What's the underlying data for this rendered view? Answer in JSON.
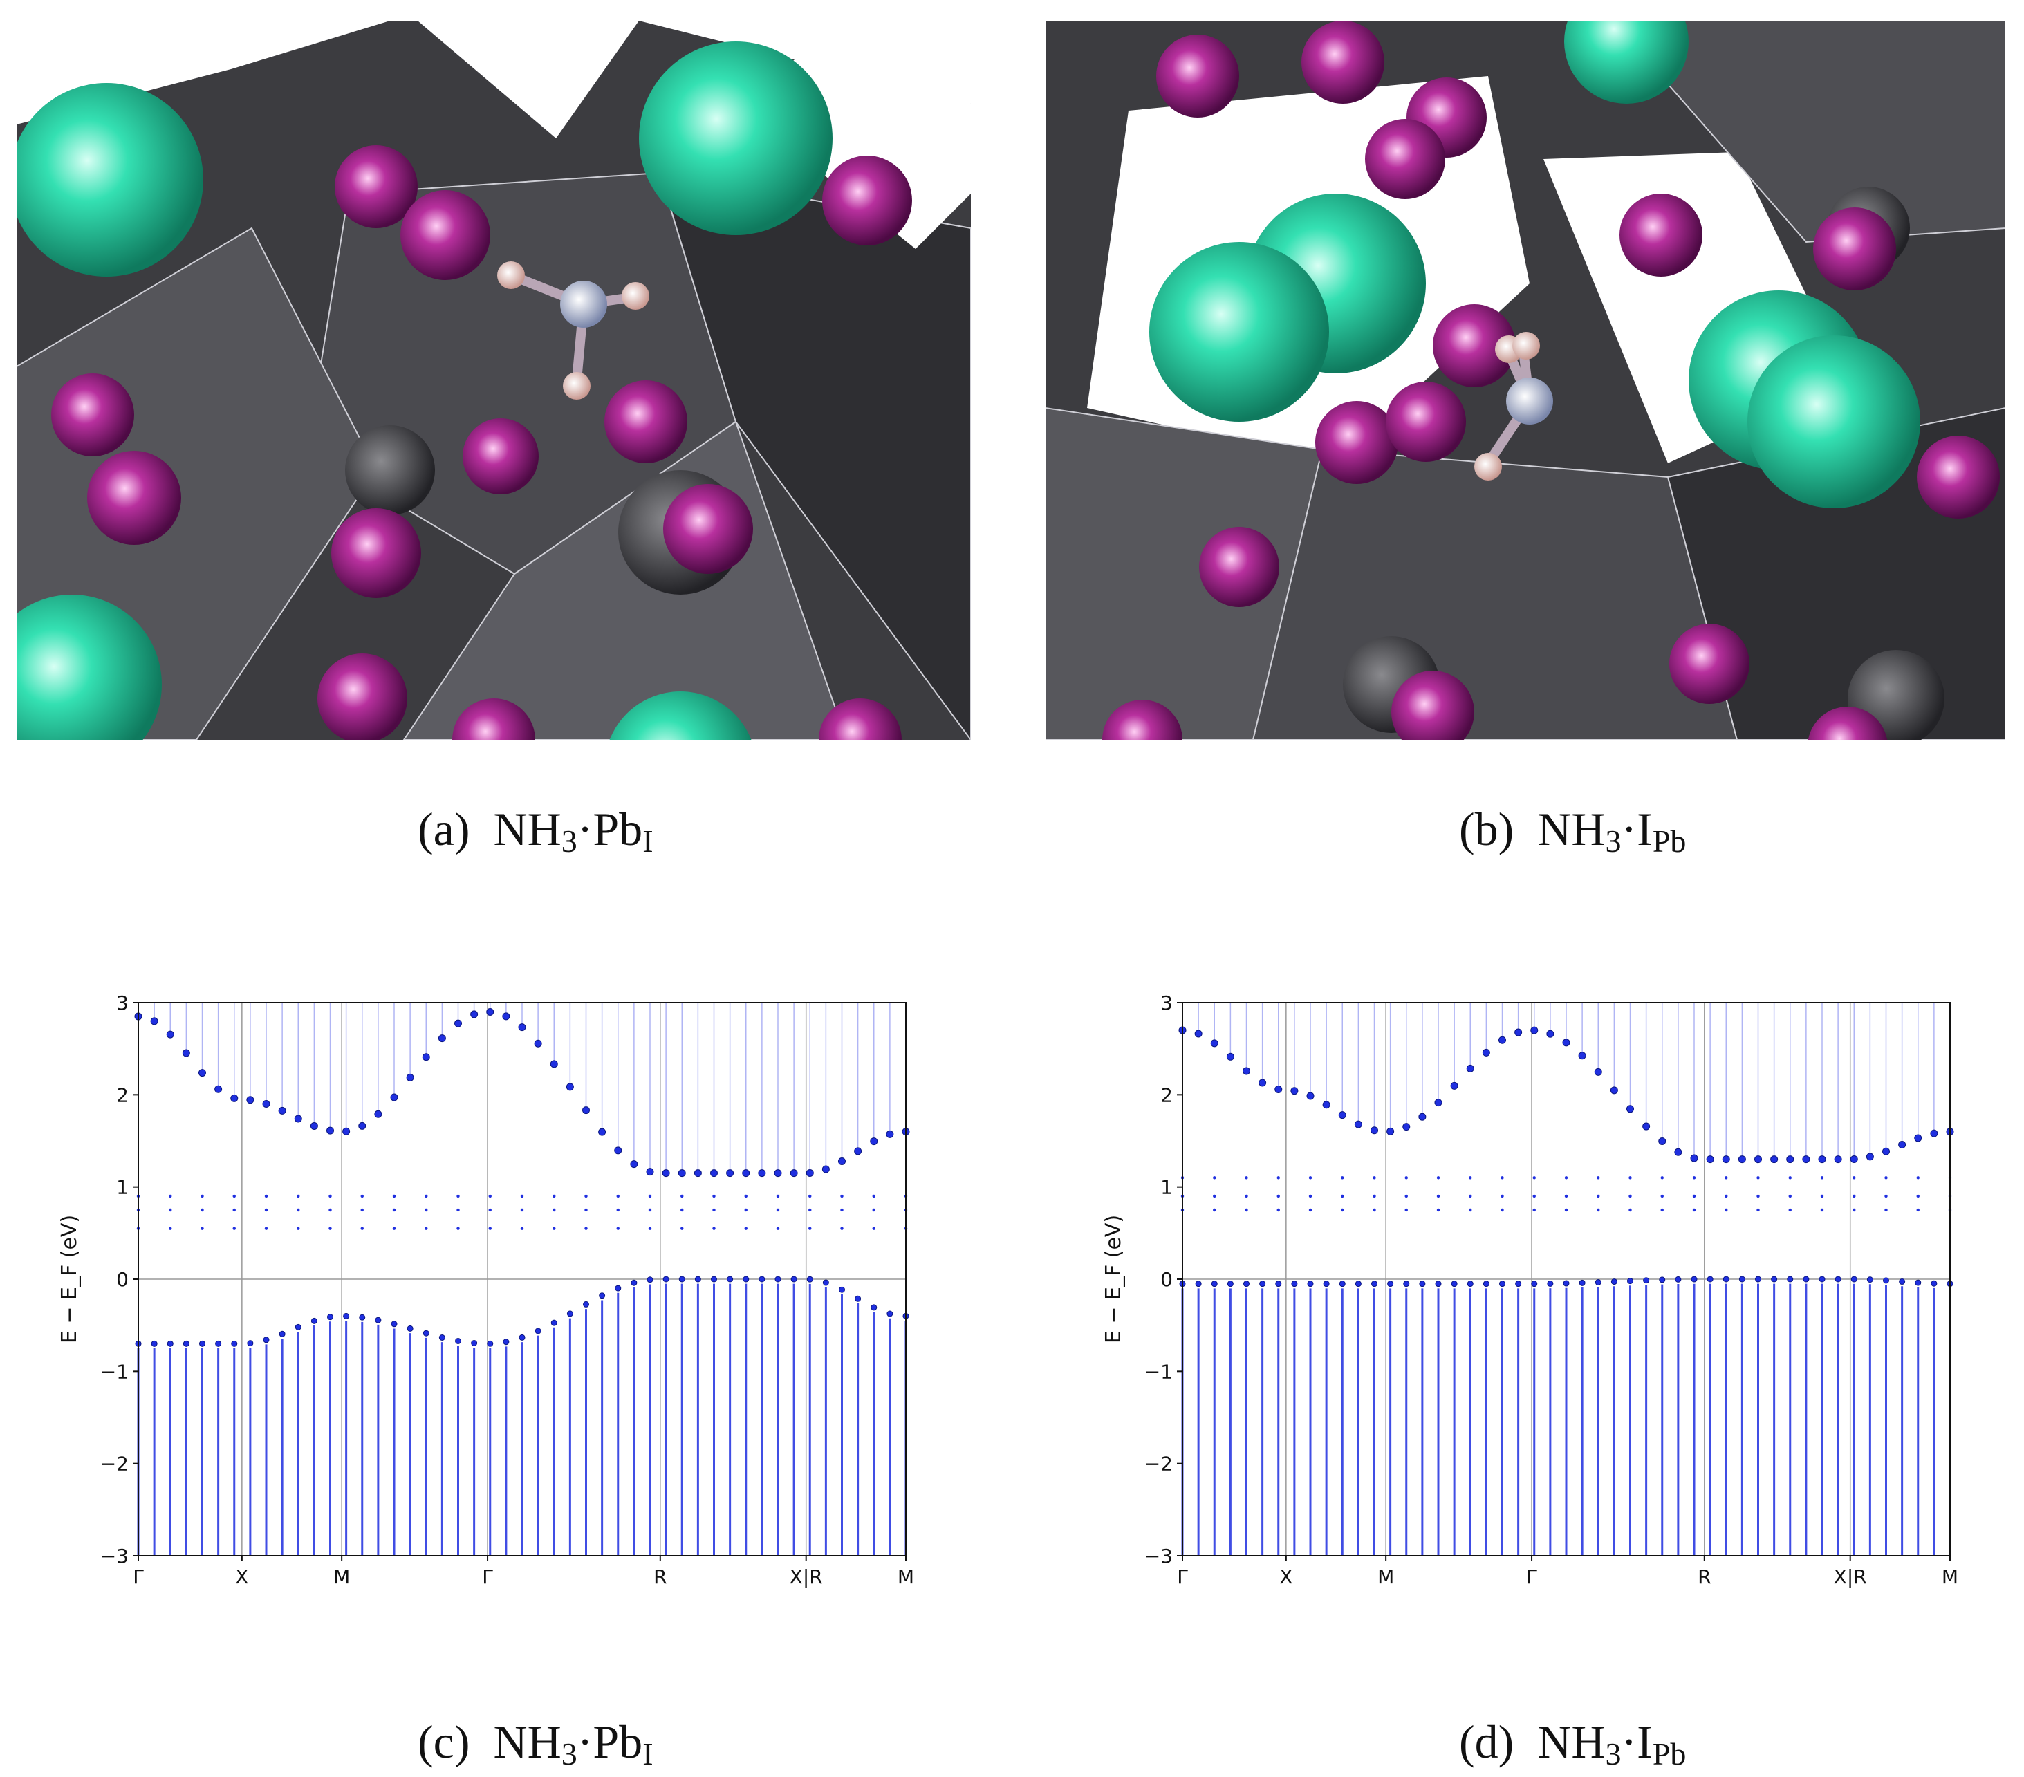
{
  "captions": {
    "a": {
      "label": "(a)",
      "mol": "NH",
      "mol_sub": "3",
      "dot": "·",
      "defect": "Pb",
      "defect_sub": "I"
    },
    "b": {
      "label": "(b)",
      "mol": "NH",
      "mol_sub": "3",
      "dot": "·",
      "defect": "I",
      "defect_sub": "Pb"
    },
    "c": {
      "label": "(c)",
      "mol": "NH",
      "mol_sub": "3",
      "dot": "·",
      "defect": "Pb",
      "defect_sub": "I"
    },
    "d": {
      "label": "(d)",
      "mol": "NH",
      "mol_sub": "3",
      "dot": "·",
      "defect": "I",
      "defect_sub": "Pb"
    }
  },
  "colors": {
    "polyhedra": "#3f3f43",
    "iodine": "#9b1f86",
    "cation": "#2fd6a6",
    "nitrogen": "#9aa6c8",
    "hydrogen": "#f0c8c0",
    "bands": "#1f2fe0"
  },
  "chart_data": [
    {
      "type": "scatter",
      "panel": "c",
      "ylabel": "E − E_F (eV)",
      "ylim": [
        -3,
        3
      ],
      "yticks": [
        "3",
        "2",
        "1",
        "0",
        "−1",
        "−2",
        "−3"
      ],
      "xticks": [
        "Γ",
        "X",
        "M",
        "Γ",
        "R",
        "X|R",
        "M"
      ],
      "xtick_positions": [
        0,
        0.135,
        0.265,
        0.455,
        0.68,
        0.87,
        1.0
      ],
      "grid": "vertical lines at high-symmetry points, horizontal line at 0",
      "defect_levels": [
        0.55,
        0.75,
        0.9
      ],
      "cbm": {
        "x": [
          "Γ",
          "X",
          "M",
          "Γ",
          "R",
          "X|R",
          "M"
        ],
        "y": [
          2.85,
          1.95,
          1.6,
          2.9,
          1.15,
          1.15,
          1.6
        ]
      },
      "vbm": {
        "x": [
          "Γ",
          "X",
          "M",
          "Γ",
          "R",
          "X|R",
          "M"
        ],
        "y": [
          -0.7,
          -0.7,
          -0.4,
          -0.7,
          0.0,
          0.0,
          -0.4
        ]
      }
    },
    {
      "type": "scatter",
      "panel": "d",
      "ylabel": "E − E_F (eV)",
      "ylim": [
        -3,
        3
      ],
      "yticks": [
        "3",
        "2",
        "1",
        "0",
        "−1",
        "−2",
        "−3"
      ],
      "xticks": [
        "Γ",
        "X",
        "M",
        "Γ",
        "R",
        "X|R",
        "M"
      ],
      "xtick_positions": [
        0,
        0.135,
        0.265,
        0.455,
        0.68,
        0.87,
        1.0
      ],
      "grid": "vertical lines at high-symmetry points, horizontal line at 0",
      "defect_levels": [
        0.75,
        0.9,
        1.1
      ],
      "cbm": {
        "x": [
          "Γ",
          "X",
          "M",
          "Γ",
          "R",
          "X|R",
          "M"
        ],
        "y": [
          2.7,
          2.05,
          1.6,
          2.7,
          1.3,
          1.3,
          1.6
        ]
      },
      "vbm": {
        "x": [
          "Γ",
          "X",
          "M",
          "Γ",
          "R",
          "X|R",
          "M"
        ],
        "y": [
          -0.05,
          -0.05,
          -0.05,
          -0.05,
          0.0,
          0.0,
          -0.05
        ]
      }
    }
  ]
}
